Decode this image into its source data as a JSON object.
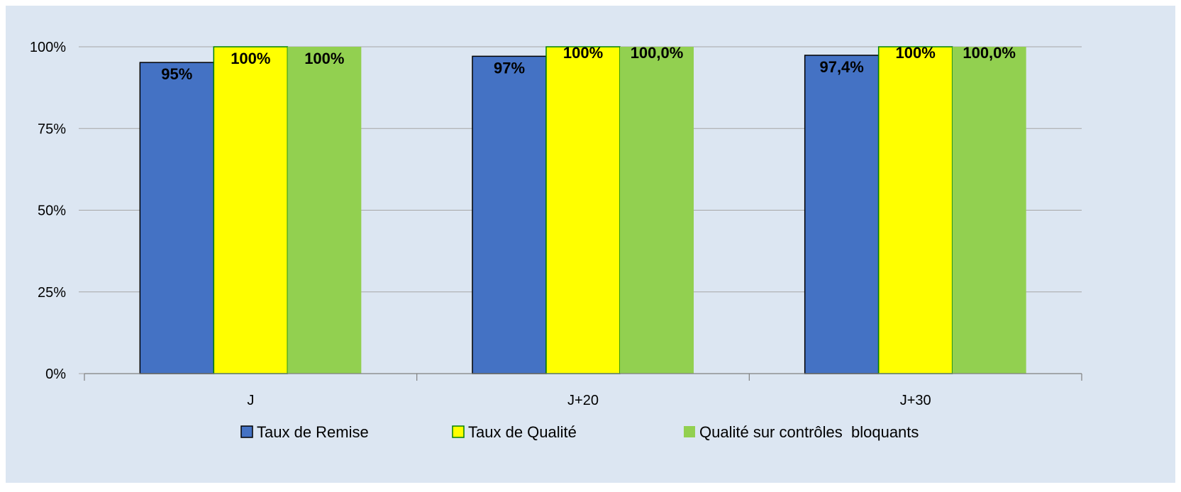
{
  "chart_data": {
    "type": "bar",
    "categories": [
      "J",
      "J+20",
      "J+30"
    ],
    "series": [
      {
        "name": "Taux de Remise",
        "values": [
          95.2,
          97.1,
          97.4
        ],
        "labels": [
          "95%",
          "97%",
          "97,4%"
        ],
        "color": "#4472C4"
      },
      {
        "name": "Taux de Qualité",
        "values": [
          100,
          100,
          100
        ],
        "labels": [
          "100%",
          "100%",
          "100%"
        ],
        "color": "#FFFF00"
      },
      {
        "name": "Qualité sur contrôles  bloquants",
        "values": [
          100,
          100,
          100
        ],
        "labels": [
          "100%",
          "100,0%",
          "100,0%"
        ],
        "color": "#92D050"
      }
    ],
    "yticks": [
      {
        "value": 0,
        "label": "0%"
      },
      {
        "value": 25,
        "label": "25%"
      },
      {
        "value": 50,
        "label": "50%"
      },
      {
        "value": 75,
        "label": "75%"
      },
      {
        "value": 100,
        "label": "100%"
      }
    ],
    "ylim": [
      0,
      100
    ],
    "grid": true,
    "legend_position": "bottom",
    "background_color": "#DCE6F2",
    "gridline_color": "#A6A6A6",
    "bar_border_color": "#000000",
    "yellow_border_color": "#008000"
  }
}
